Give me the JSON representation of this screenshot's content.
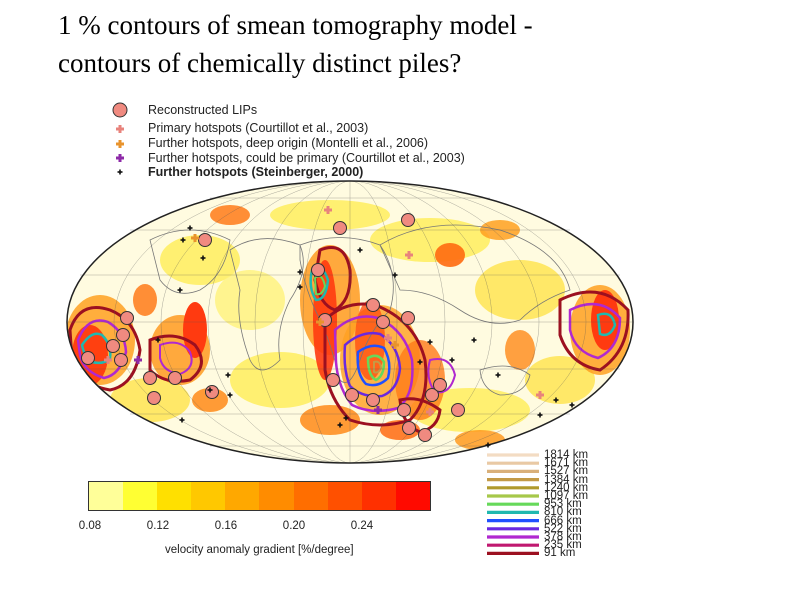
{
  "title": {
    "line1": "1 % contours of smean tomography model -",
    "line2": "contours of chemically distinct piles?"
  },
  "legend": {
    "items": [
      {
        "label": "Reconstructed LIPs",
        "marker": "circle",
        "color": "#f08a80",
        "bold": false
      },
      {
        "label": "Primary hotspots (Courtillot et al., 2003)",
        "marker": "plus",
        "color": "#e8837c",
        "bold": false
      },
      {
        "label": "Further hotspots, deep origin (Montelli et al., 2006)",
        "marker": "plus",
        "color": "#e8932c",
        "bold": false
      },
      {
        "label": "Further hotspots, could be primary (Courtillot et al., 2003)",
        "marker": "plus",
        "color": "#8e2aa8",
        "bold": false
      },
      {
        "label": "Further hotspots (Steinberger, 2000)",
        "marker": "plus",
        "color": "#111111",
        "bold": true
      }
    ]
  },
  "colorbar": {
    "colors": [
      "#ffff99",
      "#ffff33",
      "#ffe000",
      "#ffc800",
      "#ffa800",
      "#ff8c00",
      "#ff6e00",
      "#ff5000",
      "#ff3000",
      "#ff0a00"
    ],
    "ticks": [
      "0.08",
      "0.12",
      "0.16",
      "0.20",
      "0.24"
    ],
    "tick_values": [
      0.08,
      0.12,
      0.16,
      0.2,
      0.24
    ],
    "range": [
      0.08,
      0.28
    ],
    "label": "velocity anomaly gradient [%/degree]"
  },
  "depth_legend": {
    "items": [
      {
        "label": "1814 km",
        "color": "#f3dcc3"
      },
      {
        "label": "1671 km",
        "color": "#e9c9a4"
      },
      {
        "label": "1527 km",
        "color": "#d9b07a"
      },
      {
        "label": "1384 km",
        "color": "#c39a46"
      },
      {
        "label": "1240 km",
        "color": "#b09a2c"
      },
      {
        "label": "1097 km",
        "color": "#a6c84a"
      },
      {
        "label": "953 km",
        "color": "#66d95a"
      },
      {
        "label": "810 km",
        "color": "#20b8b0"
      },
      {
        "label": "666 km",
        "color": "#2050ff"
      },
      {
        "label": "522 km",
        "color": "#6a28e0"
      },
      {
        "label": "378 km",
        "color": "#b028d0"
      },
      {
        "label": "235 km",
        "color": "#c01870"
      },
      {
        "label": "91 km",
        "color": "#9c1020"
      }
    ]
  }
}
